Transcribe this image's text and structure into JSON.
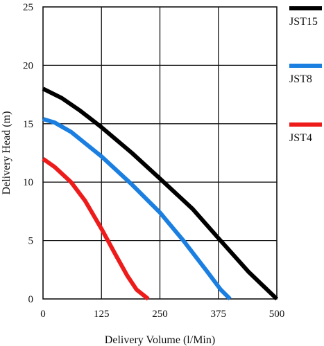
{
  "chart_data": {
    "type": "line",
    "title": "",
    "xlabel": "Delivery Volume (l/Min)",
    "ylabel": "Delivery Head (m)",
    "xlim": [
      0,
      500
    ],
    "ylim": [
      0,
      25
    ],
    "xticks": [
      "0",
      "125",
      "250",
      "375",
      "500"
    ],
    "yticks": [
      "0",
      "5",
      "10",
      "15",
      "20",
      "25"
    ],
    "grid": true,
    "legend_position": "right",
    "series": [
      {
        "name": "JST15",
        "color": "#000000",
        "x": [
          0,
          40,
          80,
          125,
          190,
          250,
          320,
          375,
          440,
          500
        ],
        "y": [
          18,
          17.2,
          16.1,
          14.7,
          12.5,
          10.3,
          7.7,
          5.2,
          2.3,
          0
        ]
      },
      {
        "name": "JST8",
        "color": "#1a7fe0",
        "x": [
          0,
          25,
          60,
          125,
          190,
          250,
          300,
          350,
          380,
          400
        ],
        "y": [
          15.4,
          15.1,
          14.3,
          12.2,
          9.8,
          7.4,
          5.0,
          2.4,
          0.8,
          0
        ]
      },
      {
        "name": "JST4",
        "color": "#ee1b1b",
        "x": [
          0,
          25,
          60,
          90,
          125,
          155,
          180,
          200,
          225
        ],
        "y": [
          12,
          11.3,
          10.0,
          8.4,
          6.0,
          3.8,
          2.0,
          0.8,
          0
        ]
      }
    ]
  }
}
